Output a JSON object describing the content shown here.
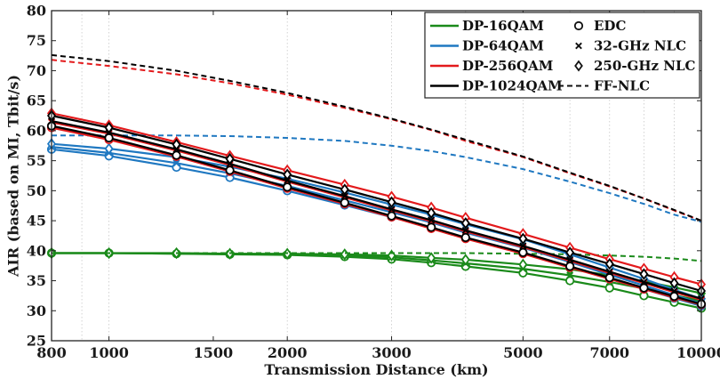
{
  "chart_data": {
    "type": "line",
    "title": "",
    "xlabel": "Transmission Distance (km)",
    "ylabel": "AIR (based on MI, Tbit/s)",
    "xscale": "log",
    "xlim": [
      800,
      10000
    ],
    "ylim": [
      25,
      80
    ],
    "xticks": [
      800,
      1000,
      1500,
      2000,
      3000,
      5000,
      7000,
      10000
    ],
    "xtick_labels": [
      "800",
      "1000",
      "1500",
      "2000",
      "3000",
      "5000",
      "7000",
      "10000"
    ],
    "yticks": [
      25,
      30,
      35,
      40,
      45,
      50,
      55,
      60,
      65,
      70,
      75,
      80
    ],
    "ytick_labels": [
      "25",
      "30",
      "35",
      "40",
      "45",
      "50",
      "55",
      "60",
      "65",
      "70",
      "75",
      "80"
    ],
    "grid": "vertical",
    "legend_position": "top-right",
    "colors": {
      "DP-16QAM": "#1a8a1a",
      "DP-64QAM": "#1f78c1",
      "DP-256QAM": "#e31a1c",
      "DP-1024QAM": "#000000"
    },
    "legend": {
      "formats": [
        {
          "label": "DP-16QAM",
          "color": "#1a8a1a"
        },
        {
          "label": "DP-64QAM",
          "color": "#1f78c1"
        },
        {
          "label": "DP-256QAM",
          "color": "#e31a1c"
        },
        {
          "label": "DP-1024QAM",
          "color": "#000000"
        }
      ],
      "methods": [
        {
          "label": "EDC",
          "marker": "circle"
        },
        {
          "label": "32-GHz NLC",
          "marker": "x"
        },
        {
          "label": "250-GHz NLC",
          "marker": "diamond"
        },
        {
          "label": "FF-NLC",
          "marker": "dashed-line"
        }
      ]
    },
    "x": [
      800,
      1000,
      1300,
      1600,
      2000,
      2500,
      3000,
      3500,
      4000,
      5000,
      6000,
      7000,
      8000,
      9000,
      10000
    ],
    "series": [
      {
        "format": "DP-16QAM",
        "method": "EDC",
        "color": "#1a8a1a",
        "marker": "circle",
        "dashed": false,
        "values": [
          39.6,
          39.6,
          39.5,
          39.4,
          39.3,
          39.0,
          38.6,
          38.0,
          37.4,
          36.3,
          35.0,
          33.8,
          32.5,
          31.4,
          30.4
        ]
      },
      {
        "format": "DP-16QAM",
        "method": "32-GHz NLC",
        "color": "#1a8a1a",
        "marker": "x",
        "dashed": false,
        "values": [
          39.6,
          39.6,
          39.5,
          39.5,
          39.4,
          39.2,
          38.9,
          38.4,
          37.9,
          37.0,
          35.9,
          34.8,
          33.7,
          32.6,
          31.6
        ]
      },
      {
        "format": "DP-16QAM",
        "method": "250-GHz NLC",
        "color": "#1a8a1a",
        "marker": "diamond",
        "dashed": false,
        "values": [
          39.6,
          39.6,
          39.6,
          39.5,
          39.5,
          39.4,
          39.2,
          38.8,
          38.5,
          37.7,
          36.9,
          35.9,
          34.9,
          33.9,
          32.9
        ]
      },
      {
        "format": "DP-16QAM",
        "method": "FF-NLC",
        "color": "#1a8a1a",
        "marker": null,
        "dashed": true,
        "values": [
          39.6,
          39.6,
          39.6,
          39.6,
          39.6,
          39.6,
          39.6,
          39.6,
          39.6,
          39.5,
          39.4,
          39.2,
          39.0,
          38.7,
          38.3
        ]
      },
      {
        "format": "DP-64QAM",
        "method": "EDC",
        "color": "#1f78c1",
        "marker": "circle",
        "dashed": false,
        "values": [
          56.9,
          55.8,
          53.9,
          52.2,
          50.0,
          47.6,
          45.6,
          43.9,
          42.1,
          39.6,
          37.3,
          35.3,
          33.6,
          32.1,
          30.8
        ]
      },
      {
        "format": "DP-64QAM",
        "method": "32-GHz NLC",
        "color": "#1f78c1",
        "marker": "x",
        "dashed": false,
        "values": [
          57.3,
          56.3,
          54.6,
          52.9,
          50.8,
          48.4,
          46.4,
          44.7,
          43.0,
          40.5,
          38.1,
          36.0,
          34.2,
          32.6,
          31.2
        ]
      },
      {
        "format": "DP-64QAM",
        "method": "250-GHz NLC",
        "color": "#1f78c1",
        "marker": "diamond",
        "dashed": false,
        "values": [
          57.8,
          57.0,
          55.6,
          54.0,
          52.0,
          49.7,
          47.7,
          46.0,
          44.4,
          41.9,
          39.4,
          37.2,
          35.3,
          33.5,
          32.0
        ]
      },
      {
        "format": "DP-64QAM",
        "method": "FF-NLC",
        "color": "#1f78c1",
        "marker": null,
        "dashed": true,
        "values": [
          59.2,
          59.2,
          59.2,
          59.1,
          58.8,
          58.3,
          57.5,
          56.6,
          55.6,
          53.6,
          51.5,
          49.6,
          47.8,
          46.0,
          44.8
        ]
      },
      {
        "format": "DP-256QAM",
        "method": "EDC",
        "color": "#e31a1c",
        "marker": "circle",
        "dashed": false,
        "values": [
          60.5,
          58.5,
          55.7,
          53.2,
          50.4,
          47.8,
          45.6,
          43.7,
          42.0,
          39.5,
          37.2,
          35.3,
          33.6,
          32.2,
          31.0
        ]
      },
      {
        "format": "DP-256QAM",
        "method": "32-GHz NLC",
        "color": "#e31a1c",
        "marker": "x",
        "dashed": false,
        "values": [
          61.4,
          59.5,
          56.7,
          54.3,
          51.5,
          48.9,
          46.7,
          44.9,
          43.2,
          40.6,
          38.3,
          36.3,
          34.6,
          33.1,
          31.8
        ]
      },
      {
        "format": "DP-256QAM",
        "method": "250-GHz NLC",
        "color": "#e31a1c",
        "marker": "diamond",
        "dashed": false,
        "values": [
          62.9,
          60.9,
          58.1,
          55.8,
          53.4,
          51.0,
          49.0,
          47.2,
          45.5,
          42.8,
          40.5,
          38.6,
          37.0,
          35.6,
          34.4
        ]
      },
      {
        "format": "DP-256QAM",
        "method": "FF-NLC",
        "color": "#e31a1c",
        "marker": null,
        "dashed": true,
        "values": [
          71.8,
          70.8,
          69.4,
          67.9,
          66.0,
          63.8,
          61.9,
          60.1,
          58.3,
          55.6,
          52.9,
          50.7,
          48.7,
          46.7,
          45.0
        ]
      },
      {
        "format": "DP-1024QAM",
        "method": "EDC",
        "color": "#000000",
        "marker": "circle",
        "dashed": false,
        "values": [
          60.8,
          58.8,
          55.9,
          53.4,
          50.6,
          48.0,
          45.8,
          43.9,
          42.2,
          39.7,
          37.4,
          35.5,
          33.8,
          32.4,
          31.1
        ]
      },
      {
        "format": "DP-1024QAM",
        "method": "32-GHz NLC",
        "color": "#000000",
        "marker": "x",
        "dashed": false,
        "values": [
          61.6,
          59.7,
          56.9,
          54.5,
          51.7,
          49.1,
          46.9,
          45.1,
          43.4,
          40.8,
          38.5,
          36.5,
          34.8,
          33.3,
          32.0
        ]
      },
      {
        "format": "DP-1024QAM",
        "method": "250-GHz NLC",
        "color": "#000000",
        "marker": "diamond",
        "dashed": false,
        "values": [
          62.5,
          60.5,
          57.7,
          55.3,
          52.7,
          50.2,
          48.1,
          46.3,
          44.6,
          42.0,
          39.7,
          37.8,
          36.1,
          34.6,
          33.3
        ]
      },
      {
        "format": "DP-1024QAM",
        "method": "FF-NLC",
        "color": "#000000",
        "marker": null,
        "dashed": true,
        "values": [
          72.6,
          71.6,
          70.0,
          68.3,
          66.3,
          64.0,
          62.0,
          60.2,
          58.5,
          55.7,
          53.0,
          50.8,
          48.7,
          46.8,
          45.0
        ]
      }
    ]
  }
}
